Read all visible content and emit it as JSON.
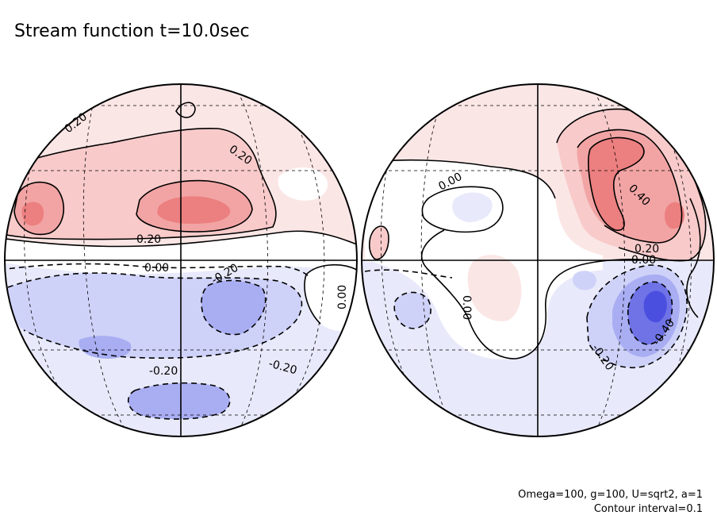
{
  "chart_data": {
    "type": "contour",
    "title": "Stream function t=10.0sec",
    "projection": "orthographic",
    "panels": [
      {
        "name": "left hemisphere",
        "contour_labels": [
          "0.20",
          "0.20",
          "0.20",
          "0.00",
          "-0.20",
          "-0.20",
          "-0.20",
          "0.00"
        ]
      },
      {
        "name": "right hemisphere",
        "contour_labels": [
          "0.00",
          "0.40",
          "0.20",
          "0.00",
          "0.00",
          "-0.40",
          "-0.20"
        ]
      }
    ],
    "levels": [
      -0.6,
      -0.5,
      -0.4,
      -0.3,
      -0.2,
      -0.1,
      0.0,
      0.1,
      0.2,
      0.3,
      0.4,
      0.5,
      0.6
    ],
    "contour_interval_value": 0.1,
    "colors": {
      "positive": [
        "#fbe6e6",
        "#f8caca",
        "#f2a4a4",
        "#ec7f7f"
      ],
      "negative": [
        "#e8eafb",
        "#cfd2f8",
        "#a9aef3",
        "#6f73e6",
        "#4b4fe0"
      ],
      "zero": "#ffffff",
      "line": "#000000"
    },
    "parameters": "Omega=100, g=100, U=sqrt2, a=1",
    "contour_interval": "Contour interval=0.1"
  }
}
